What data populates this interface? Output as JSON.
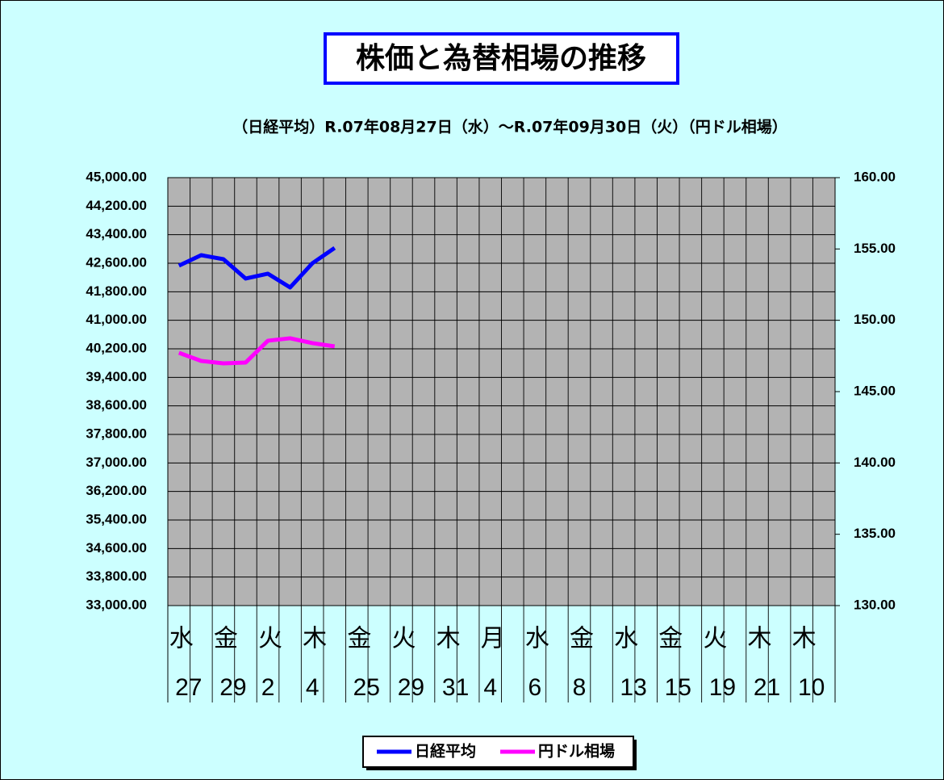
{
  "chart_data": {
    "type": "line",
    "title": "株価と為替相場の推移",
    "subtitle": "（日経平均）R.07年08月27日（水）～R.07年09月30日（火）（円ドル相場）",
    "categories": [
      "水",
      null,
      "金",
      null,
      "火",
      null,
      "木",
      null,
      "金",
      null,
      "火",
      null,
      "木",
      null,
      "月",
      null,
      "水",
      null,
      "金",
      null,
      "水",
      null,
      "金",
      null,
      "火",
      null,
      "木",
      null,
      "木",
      null
    ],
    "dates": [
      "27",
      null,
      "29",
      null,
      "2",
      null,
      "4",
      null,
      "25",
      null,
      "29",
      null,
      "31",
      null,
      "4",
      null,
      "6",
      null,
      "8",
      null,
      "13",
      null,
      "15",
      null,
      "19",
      null,
      "21",
      null,
      "10",
      null
    ],
    "series": [
      {
        "name": "日経平均",
        "color": "#0000ff",
        "values": [
          42532,
          42826,
          42713,
          42170,
          42306,
          41921,
          42600,
          43030,
          null,
          null,
          null,
          null,
          null,
          null,
          null,
          null,
          null,
          null,
          null,
          null,
          null,
          null,
          null,
          null,
          null,
          null,
          null,
          null,
          null,
          null
        ]
      },
      {
        "name": "円ドル相場",
        "color": "#ff00ff",
        "axis": "y2",
        "values": [
          147.72,
          147.15,
          146.98,
          147.04,
          148.57,
          148.74,
          148.4,
          148.17,
          null,
          null,
          null,
          null,
          null,
          null,
          null,
          null,
          null,
          null,
          null,
          null,
          null,
          null,
          null,
          null,
          null,
          null,
          null,
          null,
          null,
          null
        ]
      }
    ],
    "ylim": [
      33000,
      45000
    ],
    "yticks": [
      {
        "value": 33000,
        "label": "33,000.00"
      },
      {
        "value": 33800,
        "label": "33,800.00"
      },
      {
        "value": 34600,
        "label": "34,600.00"
      },
      {
        "value": 35400,
        "label": "35,400.00"
      },
      {
        "value": 36200,
        "label": "36,200.00"
      },
      {
        "value": 37000,
        "label": "37,000.00"
      },
      {
        "value": 37800,
        "label": "37,800.00"
      },
      {
        "value": 38600,
        "label": "38,600.00"
      },
      {
        "value": 39400,
        "label": "39,400.00"
      },
      {
        "value": 40200,
        "label": "40,200.00"
      },
      {
        "value": 41000,
        "label": "41,000.00"
      },
      {
        "value": 41800,
        "label": "41,800.00"
      },
      {
        "value": 42600,
        "label": "42,600.00"
      },
      {
        "value": 43400,
        "label": "43,400.00"
      },
      {
        "value": 44200,
        "label": "44,200.00"
      },
      {
        "value": 45000,
        "label": "45,000.00"
      }
    ],
    "y2lim": [
      130,
      160
    ],
    "y2ticks": [
      {
        "value": 130,
        "label": "130.00"
      },
      {
        "value": 135,
        "label": "135.00"
      },
      {
        "value": 140,
        "label": "140.00"
      },
      {
        "value": 145,
        "label": "145.00"
      },
      {
        "value": 150,
        "label": "150.00"
      },
      {
        "value": 155,
        "label": "155.00"
      },
      {
        "value": 160,
        "label": "160.00"
      }
    ],
    "grid": true
  }
}
